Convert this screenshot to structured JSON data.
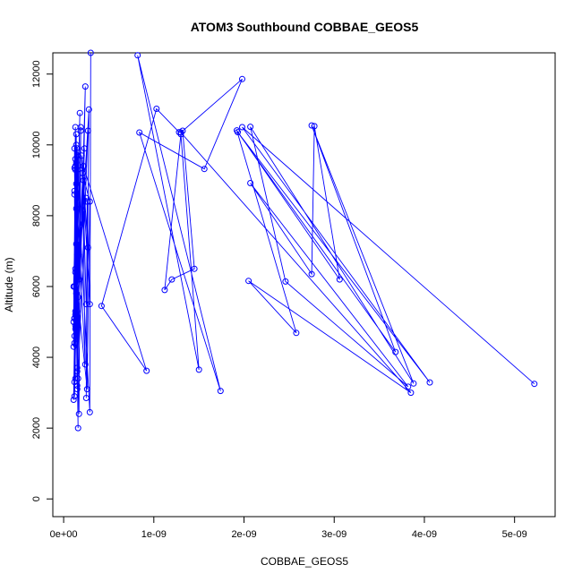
{
  "chart_data": {
    "type": "line",
    "title": "ATOM3 Southbound COBBAE_GEOS5",
    "xlabel": "COBBAE_GEOS5",
    "ylabel": "Altitude (m)",
    "xlim": [
      -1.2e-10,
      5.45e-09
    ],
    "ylim": [
      -500,
      12600
    ],
    "x_ticks": [
      {
        "value": 0,
        "label": "0e+00"
      },
      {
        "value": 1e-09,
        "label": "1e-09"
      },
      {
        "value": 2e-09,
        "label": "2e-09"
      },
      {
        "value": 3e-09,
        "label": "3e-09"
      },
      {
        "value": 4e-09,
        "label": "4e-09"
      },
      {
        "value": 5e-09,
        "label": "5e-09"
      }
    ],
    "y_ticks": [
      {
        "value": 0,
        "label": "0"
      },
      {
        "value": 2000,
        "label": "2000"
      },
      {
        "value": 4000,
        "label": "4000"
      },
      {
        "value": 6000,
        "label": "6000"
      },
      {
        "value": 8000,
        "label": "8000"
      },
      {
        "value": 10000,
        "label": "10000"
      },
      {
        "value": 12000,
        "label": "12000"
      }
    ],
    "grid": false,
    "color": "#0000ff",
    "series": [
      {
        "name": "",
        "x": [
          3e-10,
          2.9e-10,
          1.5e-10,
          1.2e-10,
          1.4e-10,
          1.1e-10,
          1.3e-10,
          1.6e-10,
          1.2e-10,
          1.5e-10,
          1.3e-10,
          1.1e-10,
          1.4e-10,
          1.2e-10,
          1.6e-10,
          1.3e-10,
          1.5e-10,
          1.1e-10,
          1.3e-10,
          1.2e-10,
          1.4e-10,
          1.7e-10,
          1.9e-10,
          1.5e-10,
          2.4e-10,
          2.2e-10,
          2.7e-10,
          2e-10,
          2.5e-10,
          2.1e-10,
          2.9e-10,
          2.6e-10,
          1.3e-10,
          1.6e-10,
          1.2e-10,
          1.8e-10,
          1.1e-10,
          1.4e-10,
          1.2e-10,
          1.3e-10,
          1.5e-10,
          1.2e-10,
          1.7e-10,
          1.3e-10,
          1.9e-10,
          1.5e-10,
          2.3e-10,
          1.6e-10,
          2.8e-10,
          2.5e-10,
          2.6e-10,
          2.9e-10,
          2.1e-10,
          2.4e-10,
          1.3e-10,
          1.6e-10,
          1.2e-10,
          1.4e-10,
          1.7e-10,
          1.3e-10,
          1.2e-10,
          1.5e-10,
          1.3e-10,
          1.4e-10,
          2.5e-10,
          1.2e-10,
          1.6e-10,
          1.3e-10,
          1.5e-10,
          1.4e-10,
          1.6e-10,
          2.7e-10,
          1.2e-10,
          2.2e-10,
          9.2e-10,
          4.2e-10,
          1.03e-09,
          1.28e-09,
          1.32e-09,
          1.45e-09,
          1.2e-09,
          1.12e-09,
          1.3e-09,
          1.5e-09,
          8.2e-10,
          1.74e-09,
          8.4e-10,
          1.56e-09,
          1.98e-09,
          1.3e-09,
          3.85e-09,
          2.05e-09,
          2.58e-09,
          1.92e-09,
          3.06e-09,
          2.78e-09,
          2.75e-09,
          2.07e-09,
          3.82e-09,
          2.46e-09,
          2.07e-09,
          3.88e-09,
          2.75e-09,
          3.68e-09,
          1.93e-09,
          4.06e-09,
          1.98e-09,
          5.22e-09
        ],
        "y": [
          12600,
          2450,
          9300,
          3300,
          8900,
          4300,
          10500,
          2000,
          9350,
          3100,
          9600,
          5000,
          10300,
          2900,
          7500,
          5300,
          9900,
          6000,
          3400,
          8700,
          5800,
          2400,
          10500,
          3200,
          11650,
          9000,
          7100,
          9700,
          5500,
          9200,
          8400,
          3100,
          6400,
          9800,
          4600,
          10900,
          2800,
          8200,
          5100,
          9400,
          3600,
          8600,
          6900,
          4900,
          10400,
          3700,
          9900,
          5700,
          11000,
          2850,
          8400,
          5500,
          9200,
          3800,
          9300,
          7000,
          4400,
          9500,
          6200,
          5200,
          9900,
          5300,
          6500,
          7200,
          8500,
          6000,
          9700,
          4800,
          6900,
          10000,
          3400,
          10400,
          5100,
          9400,
          3620,
          5450,
          11020,
          10360,
          10400,
          6500,
          6200,
          5900,
          10300,
          3650,
          12530,
          3050,
          10350,
          9320,
          11860,
          10350,
          3000,
          6160,
          4690,
          10410,
          6200,
          10530,
          6350,
          8920,
          3170,
          6140,
          10510,
          3260,
          10550,
          4150,
          10360,
          3290,
          10500,
          3250
        ]
      }
    ]
  }
}
